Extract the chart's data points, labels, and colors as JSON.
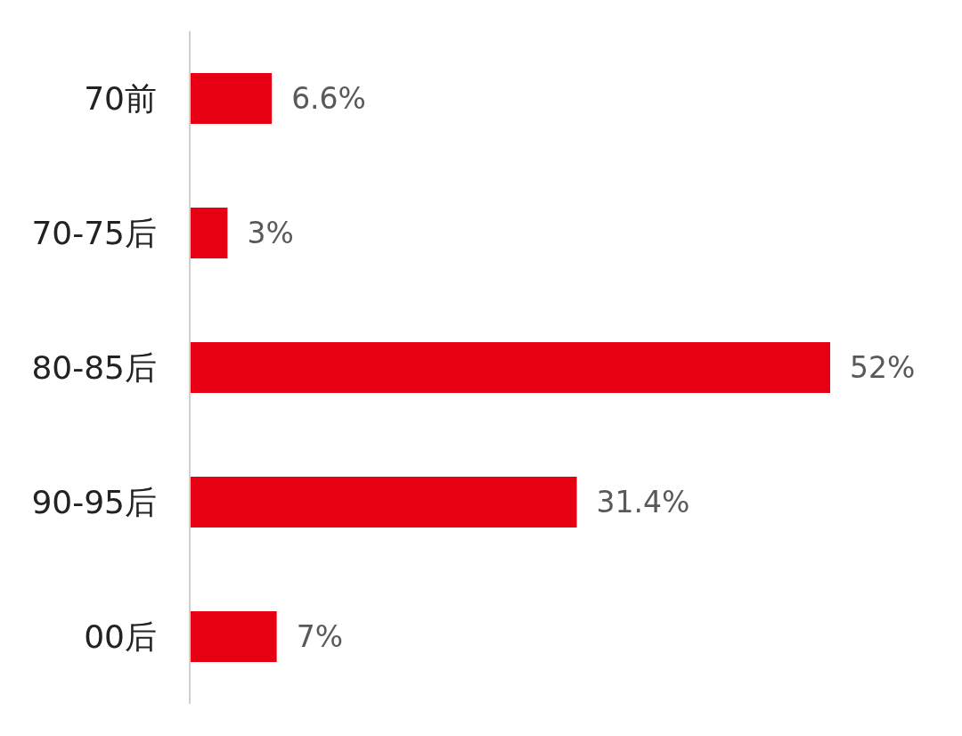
{
  "chart_data": {
    "type": "bar",
    "orientation": "horizontal",
    "categories": [
      "70前",
      "70-75后",
      "80-85后",
      "90-95后",
      "00后"
    ],
    "values": [
      6.6,
      3,
      52,
      31.4,
      7
    ],
    "value_labels": [
      "6.6%",
      "3%",
      "52%",
      "31.4%",
      "7%"
    ],
    "color": "#e60012"
  }
}
